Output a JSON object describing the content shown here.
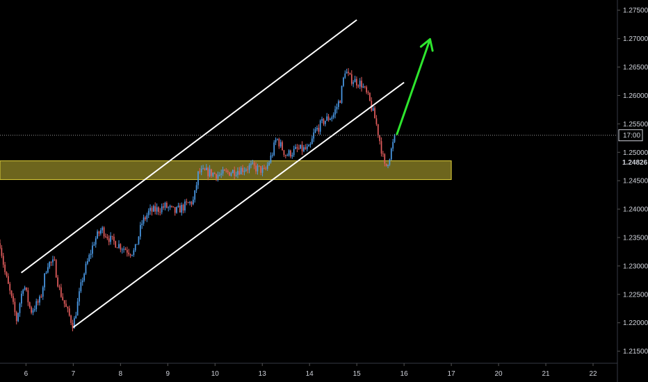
{
  "colors": {
    "background": "#000000",
    "bull": "#4b9be8",
    "bear": "#e35d5d",
    "channel": "#ffffff",
    "zone_fill": "#807722",
    "zone_border": "#e0cf3a",
    "arrow": "#2ee62e",
    "price_line": "#9a9a9a",
    "axis_text": "#d1d4dc"
  },
  "icons": {
    "arrow": "up-arrow-icon"
  },
  "chart_data": {
    "type": "candlestick",
    "title": "",
    "xlabel": "",
    "ylabel": "",
    "x_tick_labels": [
      "6",
      "7",
      "8",
      "9",
      "10",
      "13",
      "14",
      "15",
      "16",
      "17",
      "20",
      "21",
      "22"
    ],
    "x_tick_index": [
      0,
      1,
      2,
      3,
      4,
      5,
      6,
      7,
      8,
      9,
      10,
      11,
      12
    ],
    "y_tick_labels": [
      "1.27500",
      "1.27000",
      "1.26500",
      "1.26000",
      "1.25500",
      "1.25000",
      "1.24500",
      "1.24000",
      "1.23500",
      "1.23000",
      "1.22500",
      "1.22000",
      "1.21500"
    ],
    "y_tick_values": [
      1.275,
      1.27,
      1.265,
      1.26,
      1.255,
      1.25,
      1.245,
      1.24,
      1.235,
      1.23,
      1.225,
      1.22,
      1.215
    ],
    "ylim": [
      1.213,
      1.2768
    ],
    "xlim": [
      -0.55,
      12.5
    ],
    "current_price_label": "1.24826",
    "current_price": 1.24826,
    "time_label": "17:00",
    "time_label_price": 1.253,
    "candle_keypoints": [
      [
        -0.55,
        1.234
      ],
      [
        -0.45,
        1.229
      ],
      [
        -0.3,
        1.224
      ],
      [
        -0.2,
        1.2205
      ],
      [
        -0.05,
        1.227
      ],
      [
        0.1,
        1.222
      ],
      [
        0.3,
        1.224
      ],
      [
        0.45,
        1.2305
      ],
      [
        0.6,
        1.2305
      ],
      [
        0.7,
        1.226
      ],
      [
        0.85,
        1.2225
      ],
      [
        1.0,
        1.2195
      ],
      [
        1.2,
        1.228
      ],
      [
        1.45,
        1.2345
      ],
      [
        1.6,
        1.2365
      ],
      [
        1.8,
        1.2345
      ],
      [
        2.0,
        1.2335
      ],
      [
        2.2,
        1.2325
      ],
      [
        2.3,
        1.2325
      ],
      [
        2.45,
        1.2375
      ],
      [
        2.6,
        1.2395
      ],
      [
        2.8,
        1.24
      ],
      [
        2.95,
        1.2405
      ],
      [
        3.15,
        1.2395
      ],
      [
        3.35,
        1.2405
      ],
      [
        3.55,
        1.2415
      ],
      [
        3.65,
        1.2465
      ],
      [
        3.85,
        1.2465
      ],
      [
        4.1,
        1.246
      ],
      [
        4.3,
        1.2465
      ],
      [
        4.55,
        1.247
      ],
      [
        4.75,
        1.2475
      ],
      [
        4.95,
        1.247
      ],
      [
        5.05,
        1.2465
      ],
      [
        5.2,
        1.2495
      ],
      [
        5.3,
        1.2525
      ],
      [
        5.5,
        1.2495
      ],
      [
        5.75,
        1.2505
      ],
      [
        6.0,
        1.2505
      ],
      [
        6.1,
        1.2535
      ],
      [
        6.3,
        1.2555
      ],
      [
        6.5,
        1.2565
      ],
      [
        6.65,
        1.2595
      ],
      [
        6.75,
        1.2645
      ],
      [
        6.85,
        1.263
      ],
      [
        7.1,
        1.262
      ],
      [
        7.25,
        1.2595
      ],
      [
        7.4,
        1.2555
      ],
      [
        7.5,
        1.2515
      ],
      [
        7.6,
        1.247
      ],
      [
        7.7,
        1.2495
      ],
      [
        7.8,
        1.2525
      ]
    ],
    "candle_count": 240,
    "candle_noise": 0.0012,
    "support_zone": {
      "low": 1.2452,
      "high": 1.2485,
      "x_start": -0.55,
      "x_end": 9.0
    },
    "channel_lines": [
      {
        "name": "",
        "x0": -0.1,
        "y0": 1.2288,
        "x1": 7.0,
        "y1": 1.2733
      },
      {
        "name": "",
        "x0": 1.0,
        "y0": 1.2192,
        "x1": 8.0,
        "y1": 1.2623
      }
    ],
    "arrow": {
      "x0": 7.85,
      "y0": 1.2532,
      "x1": 8.55,
      "y1": 1.2699
    },
    "grid": false,
    "legend": "none"
  }
}
